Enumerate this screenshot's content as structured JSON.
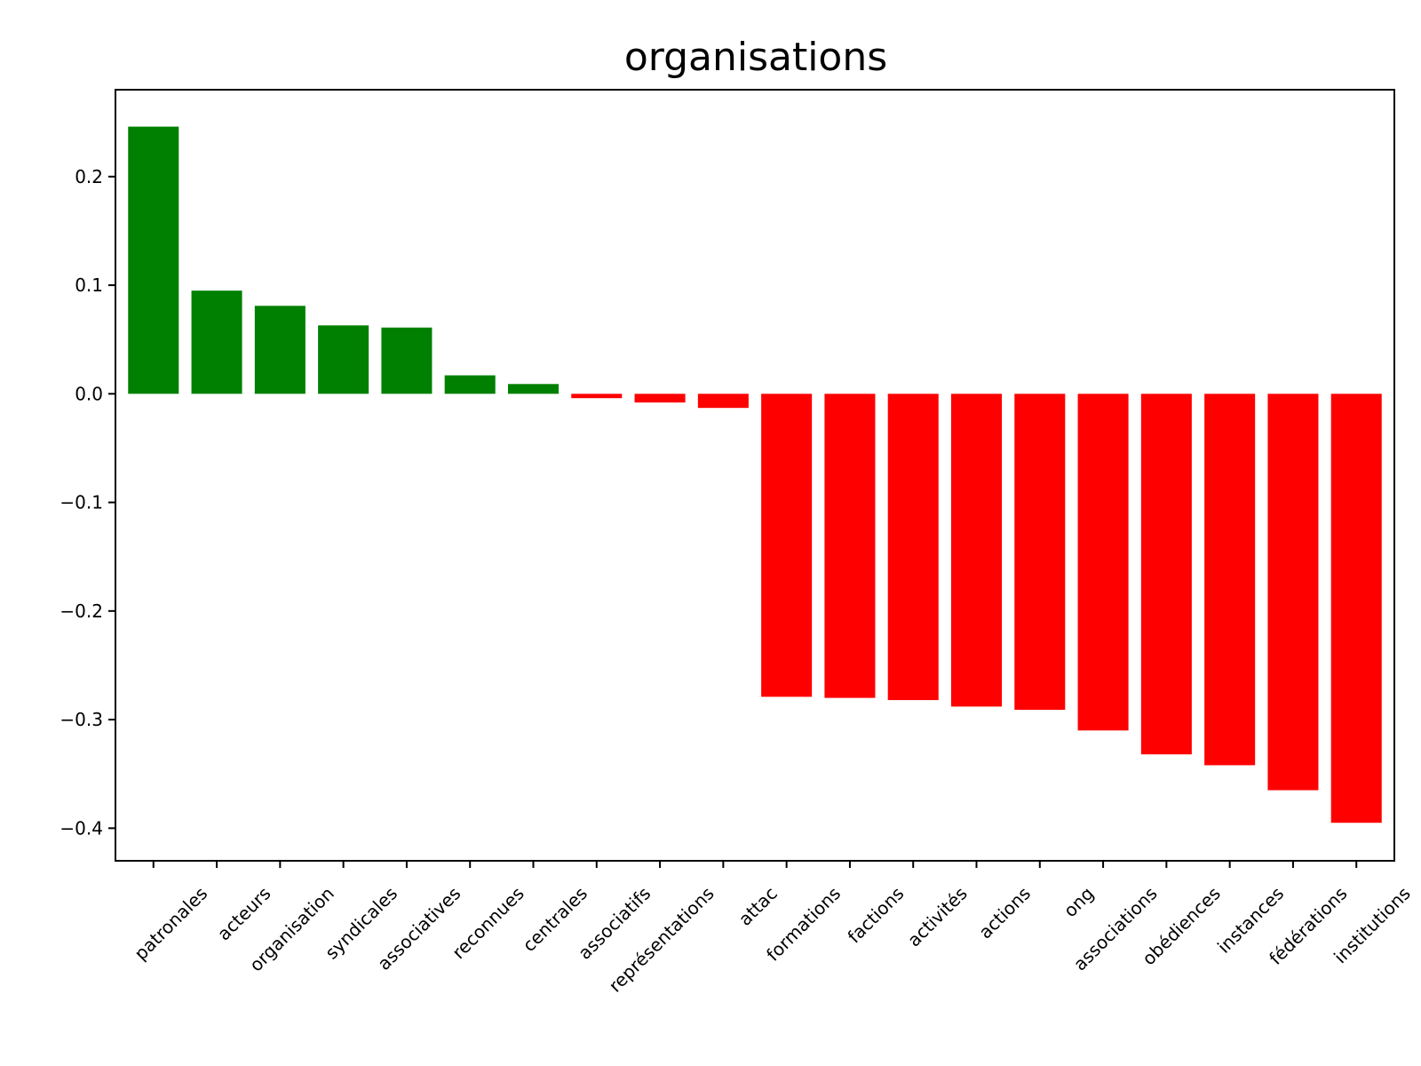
{
  "chart_data": {
    "type": "bar",
    "title": "organisations",
    "xlabel": "",
    "ylabel": "",
    "ylim": [
      -0.43,
      0.28
    ],
    "yticks": [
      0.2,
      0.1,
      0.0,
      -0.1,
      -0.2,
      -0.3,
      -0.4
    ],
    "ytick_labels": [
      "0.2",
      "0.1",
      "0.0",
      "−0.1",
      "−0.2",
      "−0.3",
      "−0.4"
    ],
    "grid": false,
    "positive_color": "#008000",
    "negative_color": "#ff0000",
    "categories": [
      "patronales",
      "acteurs",
      "organisation",
      "syndicales",
      "associatives",
      "reconnues",
      "centrales",
      "associatifs",
      "représentations",
      "attac",
      "formations",
      "factions",
      "activités",
      "actions",
      "ong",
      "associations",
      "obédiences",
      "instances",
      "fédérations",
      "institutions"
    ],
    "values": [
      0.246,
      0.095,
      0.081,
      0.063,
      0.061,
      0.017,
      0.009,
      -0.004,
      -0.008,
      -0.013,
      -0.279,
      -0.28,
      -0.282,
      -0.288,
      -0.291,
      -0.31,
      -0.332,
      -0.342,
      -0.365,
      -0.395
    ]
  }
}
